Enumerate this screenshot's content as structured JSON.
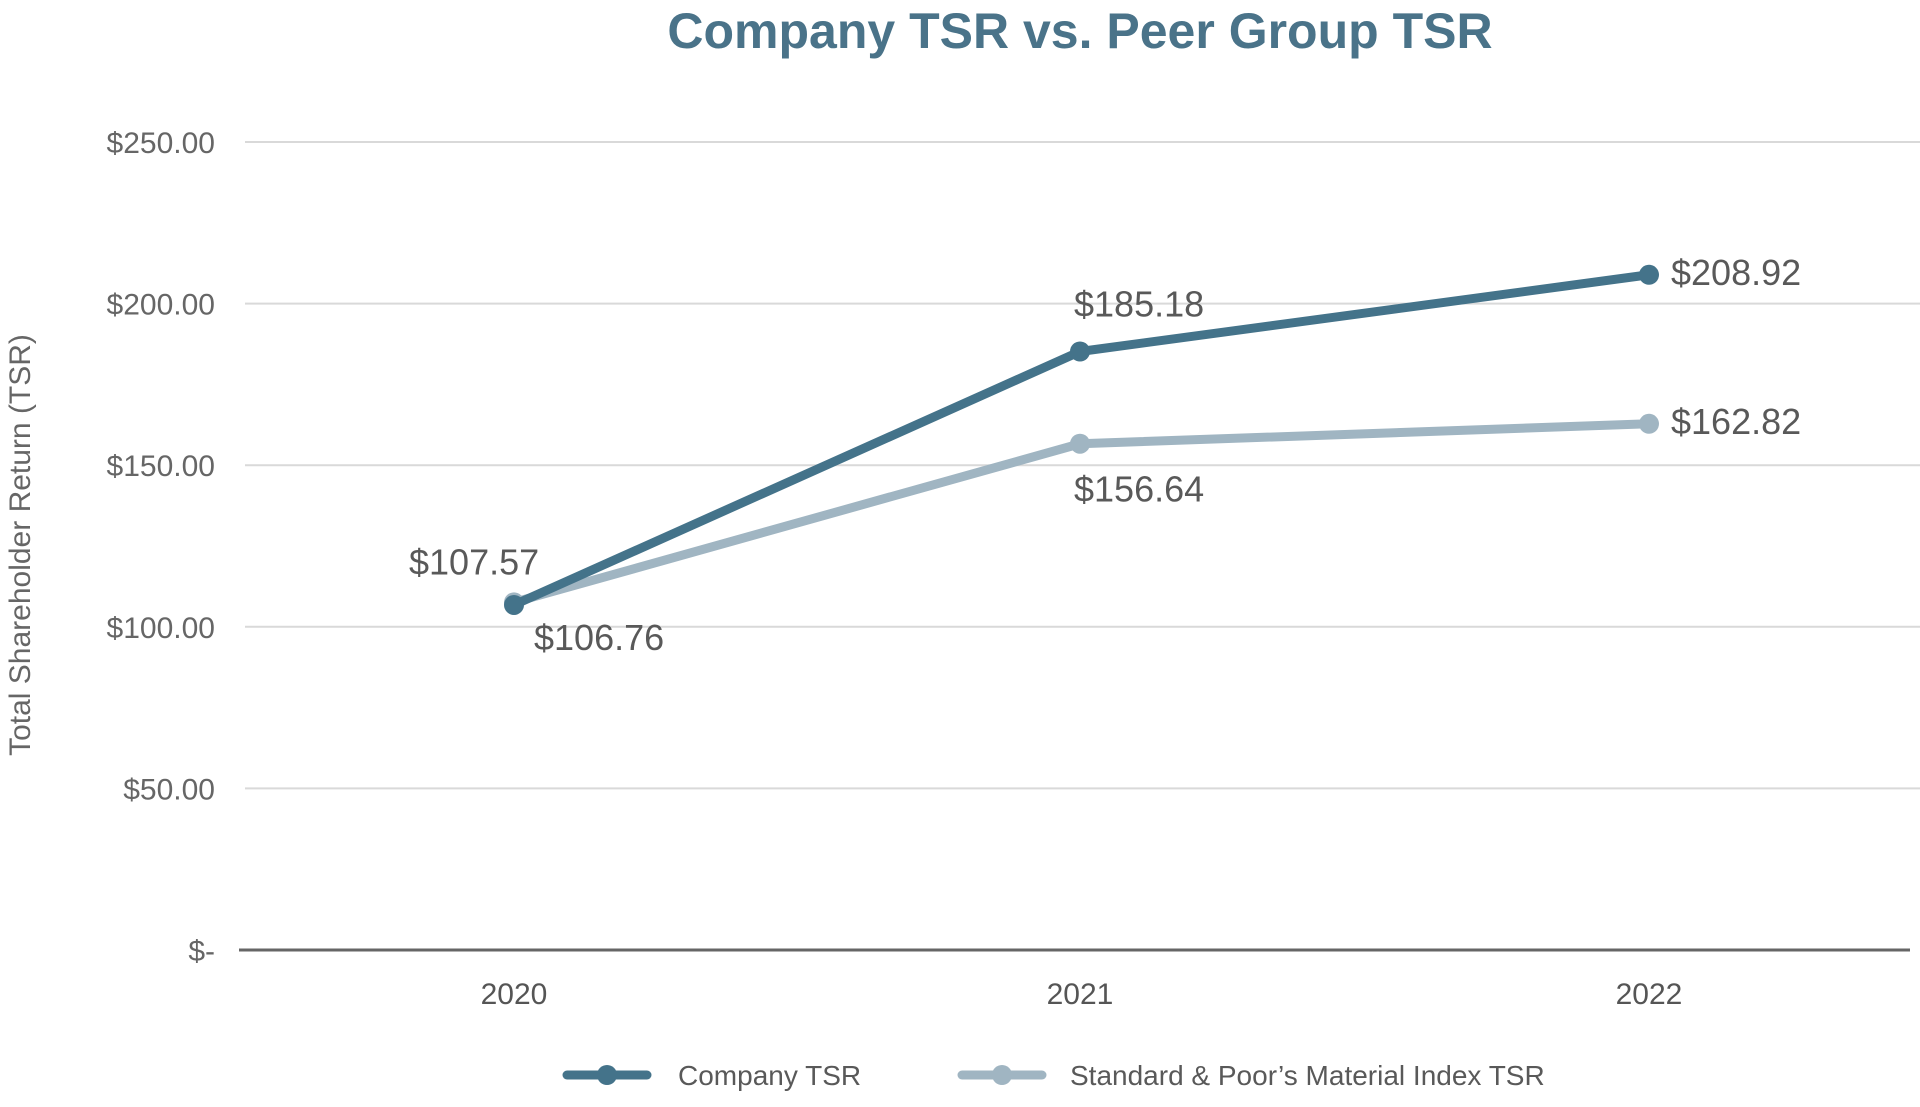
{
  "chart_data": {
    "type": "line",
    "title": "Company TSR vs. Peer Group TSR",
    "xlabel": "",
    "ylabel": "Total Shareholder Return (TSR)",
    "categories": [
      "2020",
      "2021",
      "2022"
    ],
    "ylim": [
      0,
      250
    ],
    "yticks": [
      0,
      50,
      100,
      150,
      200,
      250
    ],
    "ytick_labels": [
      "$-",
      "$50.00",
      "$100.00",
      "$150.00",
      "$200.00",
      "$250.00"
    ],
    "grid": true,
    "legend_position": "bottom",
    "series": [
      {
        "name": "Company TSR",
        "values": [
          106.76,
          185.18,
          208.92
        ],
        "labels": [
          "$106.76",
          "$185.18",
          "$208.92"
        ],
        "color": "#44738a"
      },
      {
        "name": "Standard & Poor’s Material Index TSR",
        "values": [
          107.57,
          156.64,
          162.82
        ],
        "labels": [
          "$107.57",
          "$156.64",
          "$162.82"
        ],
        "color": "#a0b5c2"
      }
    ],
    "title_color": "#4a7389"
  }
}
